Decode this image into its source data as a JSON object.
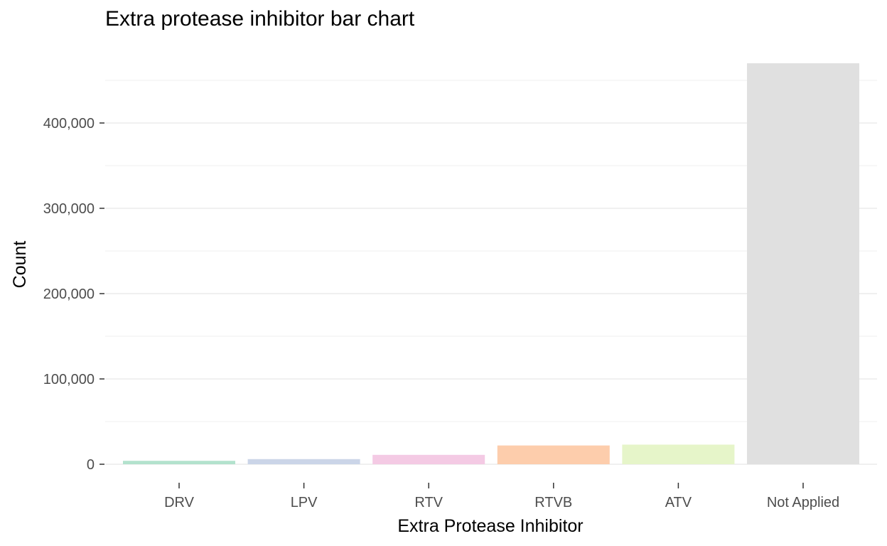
{
  "chart_data": {
    "type": "bar",
    "title": "Extra protease inhibitor bar chart",
    "xlabel": "Extra Protease Inhibitor",
    "ylabel": "Count",
    "categories": [
      "DRV",
      "LPV",
      "RTV",
      "RTVB",
      "ATV",
      "Not Applied"
    ],
    "values": [
      4000,
      6000,
      11000,
      22000,
      23000,
      470000
    ],
    "colors": [
      "#b3e2cd",
      "#cbd5e8",
      "#f4cae4",
      "#fdcdac",
      "#e6f5c9",
      "#e0e0e0"
    ],
    "ylim": [
      0,
      470000
    ],
    "yticks": [
      0,
      100000,
      200000,
      300000,
      400000
    ],
    "ytick_labels": [
      "0",
      "100,000",
      "200,000",
      "300,000",
      "400,000"
    ],
    "grid": true,
    "legend": "none"
  }
}
